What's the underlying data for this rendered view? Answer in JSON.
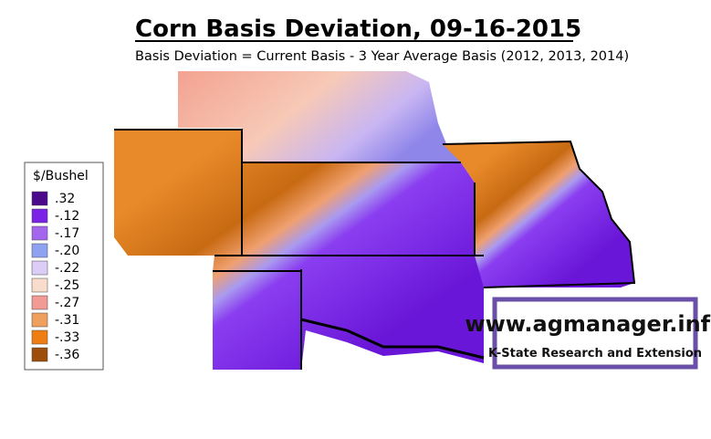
{
  "header": {
    "title": "Corn Basis Deviation, 09-16-2015",
    "subtitle": "Basis Deviation = Current Basis - 3 Year Average Basis (2012, 2013, 2014)"
  },
  "legend": {
    "title": "$/Bushel",
    "items": [
      {
        "label": ".32",
        "color": "#4b0a8c"
      },
      {
        "label": "-.12",
        "color": "#7a22e6"
      },
      {
        "label": "-.17",
        "color": "#a566ee"
      },
      {
        "label": "-.20",
        "color": "#8fa2f2"
      },
      {
        "label": "-.22",
        "color": "#dccdf7"
      },
      {
        "label": "-.25",
        "color": "#f8ddcc"
      },
      {
        "label": "-.27",
        "color": "#f29a94"
      },
      {
        "label": "-.31",
        "color": "#efa05e"
      },
      {
        "label": "-.33",
        "color": "#ee7e12"
      },
      {
        "label": "-.36",
        "color": "#9c4e0a"
      }
    ]
  },
  "watermark": {
    "url": "www.agmanager.info",
    "org": "K-State Research and Extension"
  }
}
